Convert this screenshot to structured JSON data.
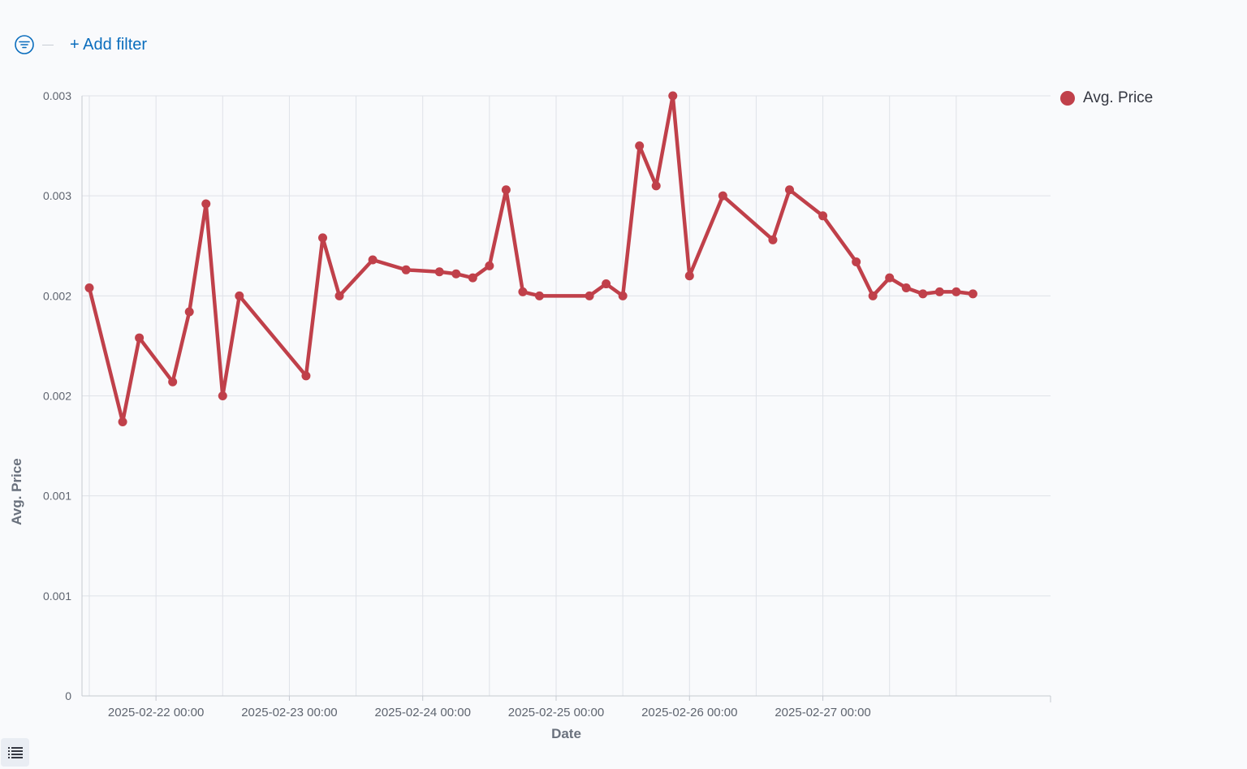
{
  "filter_bar": {
    "add_filter_label": "+ Add filter",
    "filter_icon": "filter-funnel-icon"
  },
  "legend": {
    "label": "Avg. Price",
    "color": "#c0404a"
  },
  "legend_toggle": {
    "icon": "list-icon"
  },
  "chart_data": {
    "type": "line",
    "xlabel": "Date",
    "ylabel": "Avg. Price",
    "grid": true,
    "legend_position": "top-right",
    "color": "#c0404a",
    "y_ticks": [
      {
        "value": 0,
        "label": "0"
      },
      {
        "value": 0.0005,
        "label": "0.001"
      },
      {
        "value": 0.001,
        "label": "0.001"
      },
      {
        "value": 0.0015,
        "label": "0.002"
      },
      {
        "value": 0.002,
        "label": "0.002"
      },
      {
        "value": 0.0025,
        "label": "0.003"
      },
      {
        "value": 0.003,
        "label": "0.003"
      }
    ],
    "ylim": [
      0,
      0.003
    ],
    "x_ticks": [
      {
        "value": "2025-02-22 00:00",
        "label": "2025-02-22 00:00"
      },
      {
        "value": "2025-02-23 00:00",
        "label": "2025-02-23 00:00"
      },
      {
        "value": "2025-02-24 00:00",
        "label": "2025-02-24 00:00"
      },
      {
        "value": "2025-02-25 00:00",
        "label": "2025-02-25 00:00"
      },
      {
        "value": "2025-02-26 00:00",
        "label": "2025-02-26 00:00"
      },
      {
        "value": "2025-02-27 00:00",
        "label": "2025-02-27 00:00"
      }
    ],
    "xlim": [
      "2025-02-21 12:00",
      "2025-02-28 12:00"
    ],
    "series": [
      {
        "name": "Avg. Price",
        "points": [
          {
            "x": "2025-02-21 12:00",
            "y": 0.00204
          },
          {
            "x": "2025-02-21 18:00",
            "y": 0.00137
          },
          {
            "x": "2025-02-21 21:00",
            "y": 0.00179
          },
          {
            "x": "2025-02-22 03:00",
            "y": 0.00157
          },
          {
            "x": "2025-02-22 06:00",
            "y": 0.00192
          },
          {
            "x": "2025-02-22 09:00",
            "y": 0.00246
          },
          {
            "x": "2025-02-22 12:00",
            "y": 0.0015
          },
          {
            "x": "2025-02-22 15:00",
            "y": 0.002
          },
          {
            "x": "2025-02-23 03:00",
            "y": 0.0016
          },
          {
            "x": "2025-02-23 06:00",
            "y": 0.00229
          },
          {
            "x": "2025-02-23 09:00",
            "y": 0.002
          },
          {
            "x": "2025-02-23 15:00",
            "y": 0.00218
          },
          {
            "x": "2025-02-23 21:00",
            "y": 0.00213
          },
          {
            "x": "2025-02-24 03:00",
            "y": 0.00212
          },
          {
            "x": "2025-02-24 06:00",
            "y": 0.00211
          },
          {
            "x": "2025-02-24 09:00",
            "y": 0.00209
          },
          {
            "x": "2025-02-24 12:00",
            "y": 0.00215
          },
          {
            "x": "2025-02-24 15:00",
            "y": 0.00253
          },
          {
            "x": "2025-02-24 18:00",
            "y": 0.00202
          },
          {
            "x": "2025-02-24 21:00",
            "y": 0.002
          },
          {
            "x": "2025-02-25 06:00",
            "y": 0.002
          },
          {
            "x": "2025-02-25 09:00",
            "y": 0.00206
          },
          {
            "x": "2025-02-25 12:00",
            "y": 0.002
          },
          {
            "x": "2025-02-25 15:00",
            "y": 0.00275
          },
          {
            "x": "2025-02-25 18:00",
            "y": 0.00255
          },
          {
            "x": "2025-02-25 21:00",
            "y": 0.003
          },
          {
            "x": "2025-02-26 00:00",
            "y": 0.0021
          },
          {
            "x": "2025-02-26 06:00",
            "y": 0.0025
          },
          {
            "x": "2025-02-26 15:00",
            "y": 0.00228
          },
          {
            "x": "2025-02-26 18:00",
            "y": 0.00253
          },
          {
            "x": "2025-02-27 00:00",
            "y": 0.0024
          },
          {
            "x": "2025-02-27 06:00",
            "y": 0.00217
          },
          {
            "x": "2025-02-27 09:00",
            "y": 0.002
          },
          {
            "x": "2025-02-27 12:00",
            "y": 0.00209
          },
          {
            "x": "2025-02-27 15:00",
            "y": 0.00204
          },
          {
            "x": "2025-02-27 18:00",
            "y": 0.00201
          },
          {
            "x": "2025-02-27 21:00",
            "y": 0.00202
          },
          {
            "x": "2025-02-28 00:00",
            "y": 0.00202
          },
          {
            "x": "2025-02-28 03:00",
            "y": 0.00201
          }
        ]
      }
    ]
  }
}
